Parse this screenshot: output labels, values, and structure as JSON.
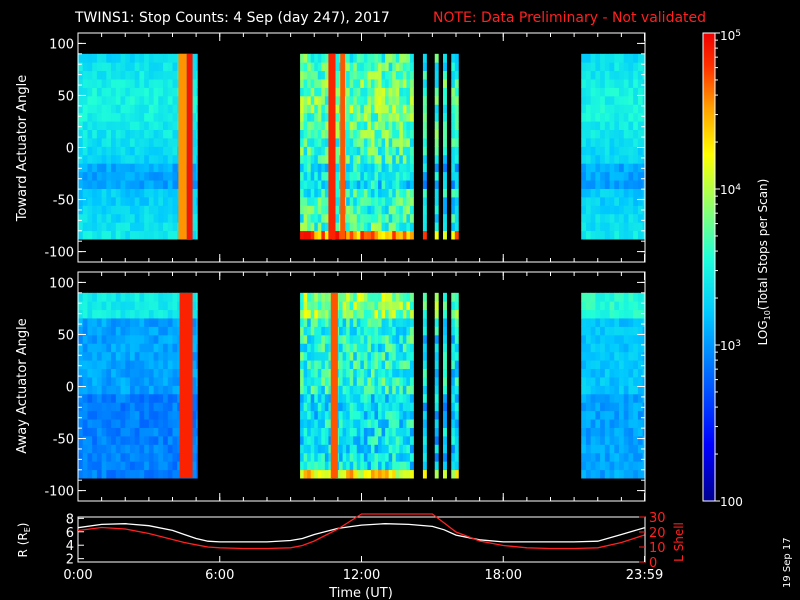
{
  "header": {
    "title": "TWINS1: Stop Counts:  4 Sep (day 247), 2017",
    "note": "NOTE: Data Preliminary - Not validated"
  },
  "stamp": "19 Sep 17",
  "colors": {
    "background": "#000000",
    "axes": "#ffffff",
    "note": "#ff2020",
    "r_curve": "#ffffff",
    "l_curve": "#ff2020"
  },
  "chart_data": [
    {
      "type": "heatmap",
      "id": "toward",
      "ylabel": "Toward Actuator Angle",
      "ylim": [
        -110,
        110
      ],
      "yticks": [
        100,
        50,
        0,
        -50,
        -100
      ],
      "yticklabels": [
        "100",
        "50",
        "0",
        "-50",
        "-100"
      ],
      "xlim": [
        0,
        24
      ],
      "data_angle_range": [
        -88,
        90
      ],
      "segments": [
        {
          "t0": 0.0,
          "t1": 5.05,
          "profile": "quiet",
          "color_level": 0.45
        },
        {
          "t0": 9.4,
          "t1": 14.2,
          "profile": "active",
          "color_level": 0.55
        },
        {
          "t0": 14.6,
          "t1": 14.75,
          "profile": "active",
          "color_level": 0.5
        },
        {
          "t0": 15.1,
          "t1": 15.25,
          "profile": "active",
          "color_level": 0.5
        },
        {
          "t0": 15.45,
          "t1": 15.6,
          "profile": "active",
          "color_level": 0.5
        },
        {
          "t0": 15.8,
          "t1": 16.1,
          "profile": "active",
          "color_level": 0.5
        },
        {
          "t0": 21.3,
          "t1": 24.0,
          "profile": "quiet",
          "color_level": 0.45
        }
      ],
      "hot_bands": [
        {
          "t0": 4.25,
          "t1": 4.6,
          "level": 0.85
        },
        {
          "t0": 4.6,
          "t1": 4.85,
          "level": 0.97
        },
        {
          "t0": 10.6,
          "t1": 10.9,
          "level": 0.95
        },
        {
          "t0": 11.1,
          "t1": 11.3,
          "level": 0.9
        }
      ]
    },
    {
      "type": "heatmap",
      "id": "away",
      "ylabel": "Away Actuator Angle",
      "ylim": [
        -110,
        110
      ],
      "yticks": [
        100,
        50,
        0,
        -50,
        -100
      ],
      "yticklabels": [
        "100",
        "50",
        "0",
        "-50",
        "-100"
      ],
      "xlim": [
        0,
        24
      ],
      "data_angle_range": [
        -88,
        90
      ],
      "segments": [
        {
          "t0": 0.0,
          "t1": 5.05,
          "profile": "quiet",
          "color_level": 0.35
        },
        {
          "t0": 9.4,
          "t1": 14.2,
          "profile": "active",
          "color_level": 0.5
        },
        {
          "t0": 14.6,
          "t1": 14.75,
          "profile": "active",
          "color_level": 0.45
        },
        {
          "t0": 15.1,
          "t1": 15.25,
          "profile": "active",
          "color_level": 0.45
        },
        {
          "t0": 15.45,
          "t1": 15.6,
          "profile": "active",
          "color_level": 0.45
        },
        {
          "t0": 15.8,
          "t1": 16.1,
          "profile": "active",
          "color_level": 0.45
        },
        {
          "t0": 21.3,
          "t1": 24.0,
          "profile": "quiet",
          "color_level": 0.4
        }
      ],
      "hot_bands": [
        {
          "t0": 4.3,
          "t1": 4.85,
          "level": 0.95
        },
        {
          "t0": 10.7,
          "t1": 11.0,
          "level": 0.9
        }
      ]
    },
    {
      "type": "line",
      "id": "orbit",
      "ylabel": "R (R",
      "ylabel_sub": "E",
      "ylabel_end": ")",
      "y2label": "L Shell",
      "xlabel": "Time (UT)",
      "ylim": [
        1.5,
        8.2
      ],
      "yticks": [
        2,
        4,
        6,
        8
      ],
      "yticklabels": [
        "2",
        "4",
        "6",
        "8"
      ],
      "y2lim": [
        0,
        30
      ],
      "y2ticks": [
        0,
        10,
        20,
        30
      ],
      "y2ticklabels": [
        "0",
        "10",
        "20",
        "30"
      ],
      "xlim": [
        0,
        24
      ],
      "xticks": [
        0,
        6,
        12,
        18,
        23.98
      ],
      "xticklabels": [
        "0:00",
        "6:00",
        "12:00",
        "18:00",
        "23:59"
      ],
      "series": [
        {
          "key": "R",
          "x": [
            0,
            1,
            2,
            3,
            4,
            4.5,
            5,
            5.5,
            6,
            7,
            8,
            9,
            9.5,
            10,
            11,
            12,
            13,
            14,
            15,
            15.5,
            16,
            17,
            18,
            19,
            20,
            21,
            22,
            23,
            23.98
          ],
          "y": [
            6.6,
            7.1,
            7.2,
            6.9,
            6.2,
            5.6,
            5.0,
            4.6,
            4.5,
            4.5,
            4.5,
            4.7,
            5.0,
            5.6,
            6.5,
            7.0,
            7.2,
            7.1,
            6.8,
            6.3,
            5.5,
            4.8,
            4.5,
            4.5,
            4.5,
            4.5,
            4.6,
            5.6,
            6.6
          ]
        },
        {
          "key": "L",
          "x": [
            0,
            1,
            2,
            3,
            4,
            4.5,
            5,
            5.5,
            6,
            7,
            8,
            9,
            9.5,
            10,
            10.5,
            11,
            11.5,
            12.0,
            15.0,
            15.5,
            16,
            17,
            18,
            19,
            20,
            21,
            22,
            23,
            23.98
          ],
          "y": [
            21,
            23,
            22,
            19,
            15,
            13,
            11.5,
            10,
            9.5,
            9,
            9,
            9.5,
            11,
            14,
            18,
            22,
            27,
            32,
            32,
            26,
            20,
            14,
            11,
            9.5,
            9,
            9,
            9.5,
            13,
            18
          ]
        }
      ]
    }
  ],
  "colorbar": {
    "label": "LOG",
    "label_sub": "10",
    "label_end": "(Total Stops per Scan)",
    "ticks": [
      "10^5",
      "10^4",
      "10^3",
      "100"
    ],
    "tick_values": [
      100000,
      10000,
      1000,
      100
    ],
    "range": [
      100,
      100000
    ]
  }
}
